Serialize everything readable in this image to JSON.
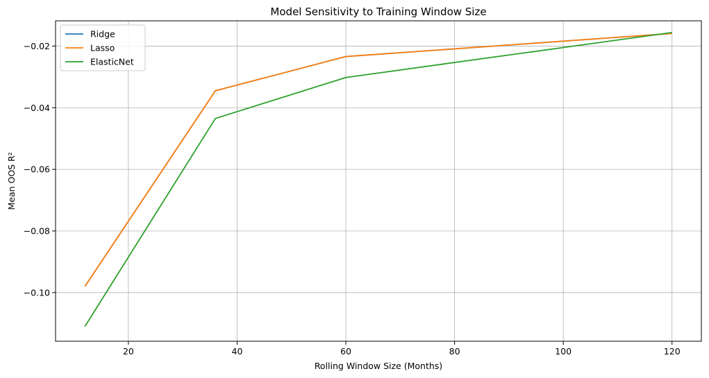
{
  "chart_data": {
    "type": "line",
    "title": "Model Sensitivity to Training Window Size",
    "xlabel": "Rolling Window Size (Months)",
    "ylabel": "Mean OOS R²",
    "x": [
      12,
      36,
      60,
      120
    ],
    "xlim": [
      6.6,
      125.4
    ],
    "ylim": [
      -0.1158,
      -0.0118
    ],
    "xticks": [
      20,
      40,
      60,
      80,
      100,
      120
    ],
    "yticks": [
      -0.1,
      -0.08,
      -0.06,
      -0.04,
      -0.02
    ],
    "xtick_labels": [
      "20",
      "40",
      "60",
      "80",
      "100",
      "120"
    ],
    "ytick_labels": [
      "−0.10",
      "−0.08",
      "−0.06",
      "−0.04",
      "−0.02"
    ],
    "grid": true,
    "legend_position": "top-left",
    "series": [
      {
        "name": "Ridge",
        "color": "#1f77b4",
        "values": [
          -0.098,
          -0.0345,
          -0.0234,
          -0.0159
        ]
      },
      {
        "name": "Lasso",
        "color": "#ff7f0e",
        "values": [
          -0.098,
          -0.0345,
          -0.0234,
          -0.0159
        ]
      },
      {
        "name": "ElasticNet",
        "color": "#2ca02c",
        "values": [
          -0.111,
          -0.0435,
          -0.0302,
          -0.0156
        ]
      }
    ]
  }
}
